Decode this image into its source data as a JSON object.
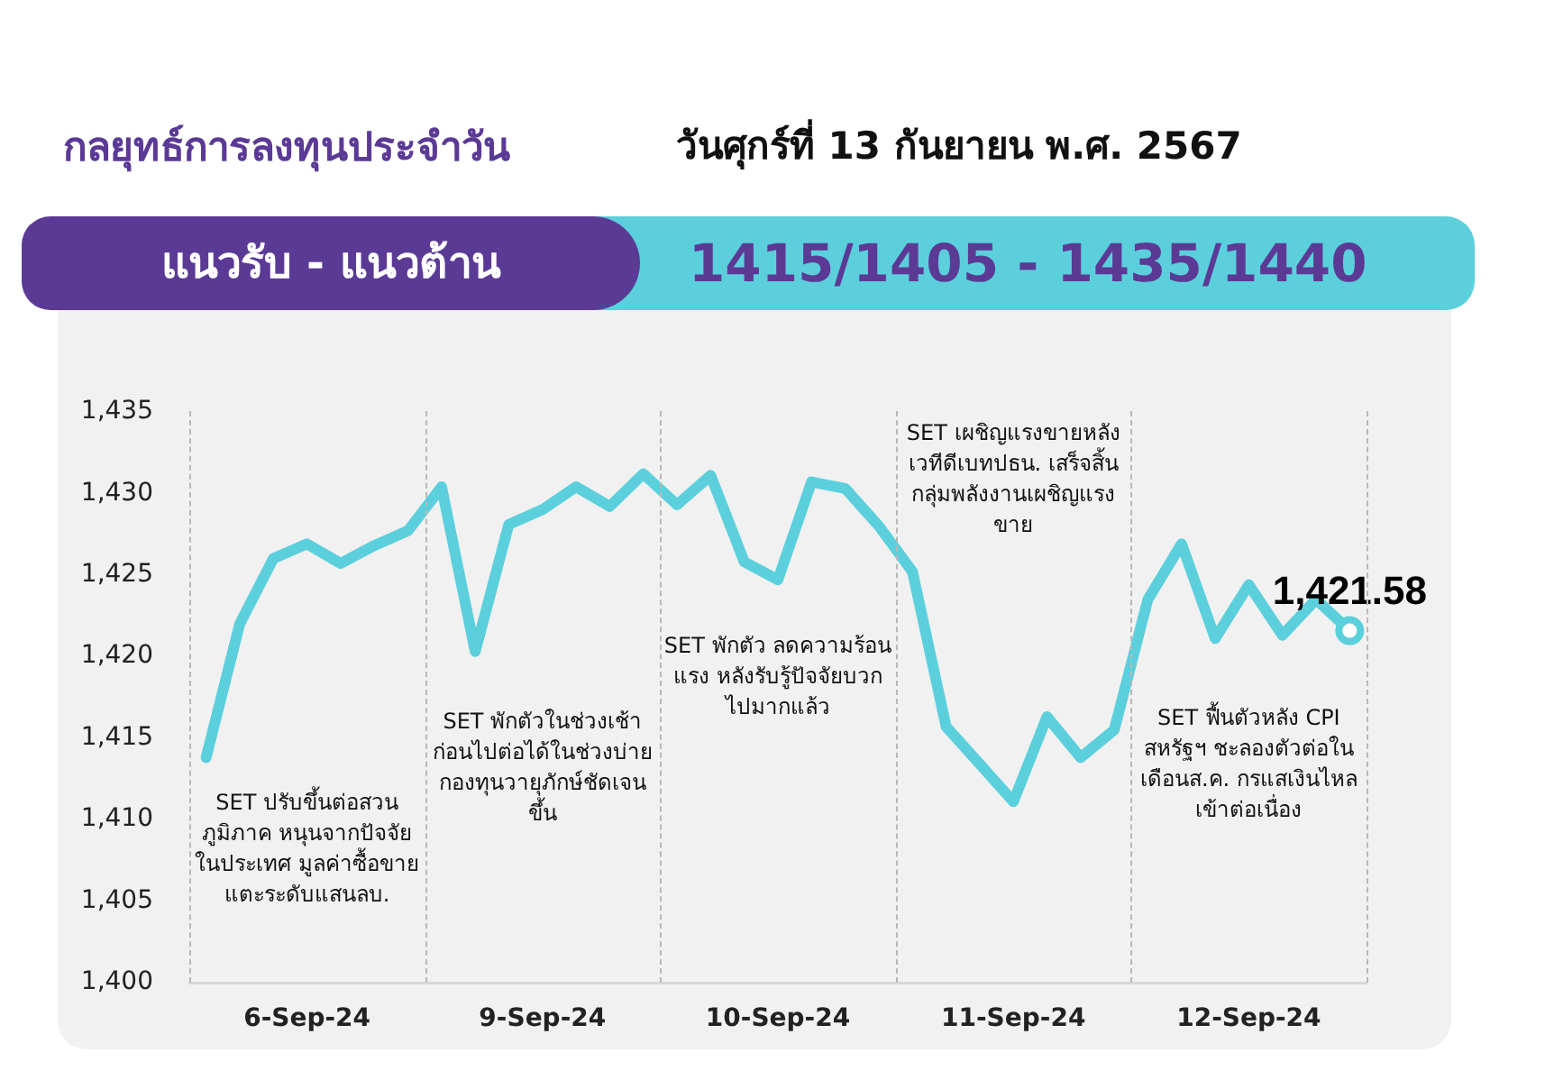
{
  "chart_data": {
    "type": "line",
    "title": "กลยุทธ์การลงทุนประจำวัน",
    "subtitle": "วันศุกร์ที่ 13 กันยายน พ.ศ. 2567",
    "annotations": [
      "แนวรับ - แนวต้าน",
      "1415/1405 - 1435/1440",
      "SET ปรับขึ้นต่อสวนภูมิภาค หนุนจากปัจจัยในประเทศ มูลค่าซื้อขายแตะระดับแสนลบ.",
      "SET พักตัวในช่วงเช้าก่อนไปต่อได้ในช่วงบ่าย กองทุนวายุภักษ์ชัดเจนขึ้น",
      "SET พักตัว ลดความร้อนแรง หลังรับรู้ปัจจัยบวกไปมากแล้ว",
      "SET เผชิญแรงขายหลังเวทีดีเบทปธน. เสร็จสิ้น กลุ่มพลังงานเผชิญแรงขาย",
      "SET ฟื้นตัวหลัง CPI สหรัฐฯ ชะลองตัวต่อในเดือนส.ค. กรแสเงินไหลเข้าต่อเนื่อง"
    ],
    "categories": [
      null,
      null,
      null,
      "6-Sep-24",
      null,
      null,
      null,
      null,
      null,
      null,
      "9-Sep-24",
      null,
      null,
      null,
      null,
      null,
      null,
      "10-Sep-24",
      null,
      null,
      null,
      null,
      null,
      null,
      "11-Sep-24",
      null,
      null,
      null,
      null,
      null,
      null,
      "12-Sep-24",
      null,
      null,
      null
    ],
    "series": [
      {
        "color": "#5bd0dc",
        "values": [
          1413.8,
          1422.0,
          1426.0,
          1426.9,
          1425.7,
          1426.8,
          1427.7,
          1430.4,
          1420.3,
          1428.1,
          1429.0,
          1430.4,
          1429.2,
          1431.2,
          1429.3,
          1431.1,
          1425.8,
          1424.7,
          1430.7,
          1430.3,
          1428.0,
          1425.2,
          1415.7,
          1413.4,
          1411.1,
          1416.3,
          1413.8,
          1415.5,
          1423.5,
          1426.9,
          1421.1,
          1424.4,
          1421.3,
          1423.5,
          1421.58
        ],
        "value_labels": [
          null,
          null,
          null,
          null,
          null,
          null,
          null,
          null,
          null,
          null,
          null,
          null,
          null,
          null,
          null,
          null,
          null,
          null,
          null,
          null,
          null,
          null,
          null,
          null,
          null,
          null,
          null,
          null,
          null,
          null,
          null,
          null,
          null,
          null,
          "1,421.58"
        ]
      }
    ],
    "ylim": [
      1400,
      1435
    ],
    "yticks": [
      {
        "value": 1400,
        "label": "1,400"
      },
      {
        "value": 1405,
        "label": "1,405"
      },
      {
        "value": 1410,
        "label": "1,410"
      },
      {
        "value": 1415,
        "label": "1,415"
      },
      {
        "value": 1420,
        "label": "1,420"
      },
      {
        "value": 1425,
        "label": "1,425"
      },
      {
        "value": 1430,
        "label": "1,430"
      },
      {
        "value": 1435,
        "label": "1,435"
      }
    ],
    "grid": false,
    "legend": false,
    "marker": "none",
    "line_style": "solid"
  }
}
